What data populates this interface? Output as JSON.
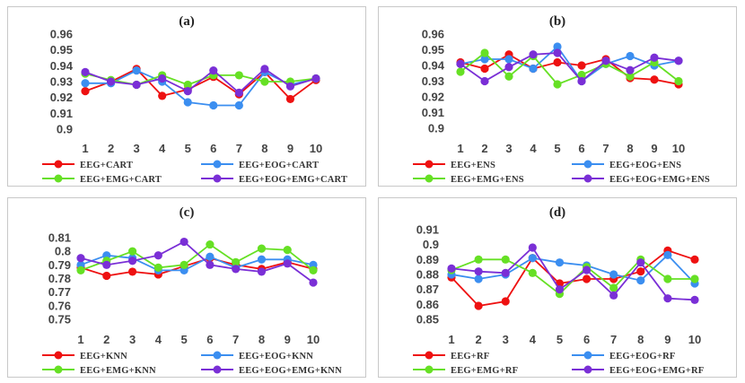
{
  "colors": {
    "series1": "#ee1111",
    "series2": "#3b8ef0",
    "series3": "#66e024",
    "series4": "#7a2fd6"
  },
  "chart_data": [
    {
      "type": "line",
      "title": "(a)",
      "x": [
        1,
        2,
        3,
        4,
        5,
        6,
        7,
        8,
        9,
        10
      ],
      "ylim": [
        0.9,
        0.96
      ],
      "yticks": [
        "0.9",
        "0.91",
        "0.92",
        "0.93",
        "0.94",
        "0.95",
        "0.96"
      ],
      "grid": false,
      "legend": "bottom",
      "series": [
        {
          "name": "EEG+CART",
          "values": [
            0.924,
            0.93,
            0.938,
            0.921,
            0.925,
            0.933,
            0.922,
            0.936,
            0.919,
            0.931
          ]
        },
        {
          "name": "EEG+EOG+CART",
          "values": [
            0.929,
            0.929,
            0.937,
            0.93,
            0.917,
            0.915,
            0.915,
            0.936,
            0.928,
            0.932
          ]
        },
        {
          "name": "EEG+EMG+CART",
          "values": [
            0.935,
            0.931,
            0.928,
            0.934,
            0.928,
            0.934,
            0.934,
            0.93,
            0.93,
            0.932
          ]
        },
        {
          "name": "EEG+EOG+EMG+CART",
          "values": [
            0.936,
            0.93,
            0.928,
            0.932,
            0.924,
            0.937,
            0.923,
            0.938,
            0.927,
            0.932
          ]
        }
      ]
    },
    {
      "type": "line",
      "title": "(b)",
      "x": [
        1,
        2,
        3,
        4,
        5,
        6,
        7,
        8,
        9,
        10
      ],
      "ylim": [
        0.9,
        0.96
      ],
      "yticks": [
        "0.9",
        "0.91",
        "0.92",
        "0.93",
        "0.94",
        "0.95",
        "0.96"
      ],
      "grid": false,
      "legend": "bottom",
      "series": [
        {
          "name": "EEG+ENS",
          "values": [
            0.942,
            0.938,
            0.947,
            0.938,
            0.942,
            0.94,
            0.944,
            0.932,
            0.931,
            0.928
          ]
        },
        {
          "name": "EEG+EOG+ENS",
          "values": [
            0.941,
            0.944,
            0.944,
            0.938,
            0.952,
            0.93,
            0.941,
            0.946,
            0.94,
            0.943
          ]
        },
        {
          "name": "EEG+EMG+ENS",
          "values": [
            0.936,
            0.948,
            0.933,
            0.946,
            0.928,
            0.934,
            0.941,
            0.933,
            0.942,
            0.93
          ]
        },
        {
          "name": "EEG+EOG+EMG+ENS",
          "values": [
            0.941,
            0.93,
            0.939,
            0.947,
            0.948,
            0.93,
            0.943,
            0.937,
            0.945,
            0.943
          ]
        }
      ]
    },
    {
      "type": "line",
      "title": "(c)",
      "x": [
        1,
        2,
        3,
        4,
        5,
        6,
        7,
        8,
        9,
        10
      ],
      "ylim": [
        0.75,
        0.81
      ],
      "yticks": [
        "0.75",
        "0.76",
        "0.77",
        "0.78",
        "0.79",
        "0.8",
        "0.81"
      ],
      "grid": false,
      "legend": "bottom",
      "series": [
        {
          "name": "EEG+KNN",
          "values": [
            0.788,
            0.782,
            0.785,
            0.783,
            0.789,
            0.795,
            0.79,
            0.787,
            0.792,
            0.787
          ]
        },
        {
          "name": "EEG+EOG+KNN",
          "values": [
            0.79,
            0.797,
            0.795,
            0.786,
            0.786,
            0.796,
            0.788,
            0.794,
            0.794,
            0.79
          ]
        },
        {
          "name": "EEG+EMG+KNN",
          "values": [
            0.786,
            0.793,
            0.8,
            0.788,
            0.79,
            0.805,
            0.792,
            0.802,
            0.801,
            0.786
          ]
        },
        {
          "name": "EEG+EOG+EMG+KNN",
          "values": [
            0.795,
            0.79,
            0.793,
            0.797,
            0.807,
            0.79,
            0.787,
            0.785,
            0.791,
            0.777
          ]
        }
      ]
    },
    {
      "type": "line",
      "title": "(d)",
      "x": [
        1,
        2,
        3,
        4,
        5,
        6,
        7,
        8,
        9,
        10
      ],
      "ylim": [
        0.85,
        0.91
      ],
      "yticks": [
        "0.85",
        "0.86",
        "0.87",
        "0.88",
        "0.89",
        "0.9",
        "0.91"
      ],
      "grid": false,
      "legend": "bottom",
      "series": [
        {
          "name": "EEG+RF",
          "values": [
            0.878,
            0.859,
            0.862,
            0.891,
            0.874,
            0.877,
            0.877,
            0.882,
            0.896,
            0.89
          ]
        },
        {
          "name": "EEG+EOG+RF",
          "values": [
            0.88,
            0.877,
            0.88,
            0.891,
            0.888,
            0.886,
            0.88,
            0.876,
            0.893,
            0.874
          ]
        },
        {
          "name": "EEG+EMG+RF",
          "values": [
            0.883,
            0.89,
            0.89,
            0.881,
            0.867,
            0.885,
            0.871,
            0.89,
            0.877,
            0.877
          ]
        },
        {
          "name": "EEG+EOG+EMG+RF",
          "values": [
            0.884,
            0.882,
            0.881,
            0.898,
            0.87,
            0.883,
            0.866,
            0.888,
            0.864,
            0.863
          ]
        }
      ]
    }
  ]
}
